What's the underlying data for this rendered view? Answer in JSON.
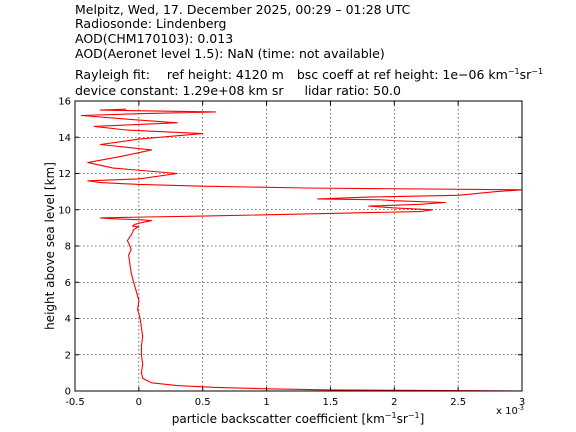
{
  "header": {
    "line1": "Melpitz, Wed, 17. December 2025, 00:29 – 01:28 UTC",
    "line2": "Radiosonde: Lindenberg",
    "line3": "AOD(CHM170103): 0.013",
    "line4": "AOD(Aeronet level 1.5): NaN   (time: not available)",
    "rayleigh_label": "Rayleigh fit:",
    "ref_height": "ref height: 4120 m",
    "bsc_prefix": "bsc coeff at ref height: 1e−06 km",
    "bsc_sup1": "−1",
    "bsc_mid": "sr",
    "bsc_sup2": "−1",
    "device_constant": "device constant: 1.29e+08 km sr",
    "lidar_ratio": "lidar ratio: 50.0"
  },
  "chart_data": {
    "type": "line",
    "xlabel_main": "particle backscatter coefficient [km",
    "xlabel_sup1": "−1",
    "xlabel_mid": "sr",
    "xlabel_sup2": "−1",
    "xlabel_end": "]",
    "ylabel": "height above sea level [km]",
    "x_multiplier_label": "x 10",
    "x_multiplier_exp": "-3",
    "xlim": [
      -0.5,
      3
    ],
    "ylim": [
      0,
      16
    ],
    "xticks": [
      "-0.5",
      "0",
      "0.5",
      "1",
      "1.5",
      "2",
      "2.5",
      "3"
    ],
    "yticks": [
      "0",
      "2",
      "4",
      "6",
      "8",
      "10",
      "12",
      "14",
      "16"
    ],
    "grid": true,
    "series_color": "#ff0000",
    "series": [
      {
        "x": [
          3.0,
          1.5,
          1.0,
          0.6,
          0.3,
          0.1,
          0.03,
          0.02,
          0.03,
          0.02,
          0.02,
          0.03,
          0.02,
          0.01,
          -0.01,
          0.0,
          -0.02,
          -0.04,
          -0.06,
          -0.07,
          -0.08,
          -0.06,
          -0.07,
          -0.09,
          -0.06,
          -0.04,
          -0.02,
          0.0,
          -0.05,
          -0.03,
          0.03,
          0.1,
          0.0,
          -0.2,
          -0.3,
          0.05,
          0.5,
          1.5,
          2.2,
          2.3,
          2.0,
          1.8,
          2.2,
          2.4,
          2.0,
          1.9,
          1.4,
          1.8,
          2.5,
          2.8,
          3.0,
          1.3,
          0.5,
          0.0,
          -0.3,
          -0.4,
          0.0,
          0.3,
          -0.2,
          -0.4,
          -0.1,
          0.1,
          -0.3,
          0.0,
          0.5,
          -0.1,
          -0.35,
          0.3,
          -0.1,
          -0.45,
          0.0,
          0.6,
          -0.3,
          -0.1
        ],
        "y": [
          0.0,
          0.06,
          0.12,
          0.2,
          0.3,
          0.45,
          0.7,
          1.0,
          1.5,
          2.0,
          2.5,
          3.0,
          3.5,
          4.0,
          4.5,
          5.0,
          5.5,
          6.0,
          6.5,
          7.0,
          7.5,
          7.8,
          8.0,
          8.3,
          8.6,
          8.9,
          9.0,
          9.05,
          9.1,
          9.2,
          9.3,
          9.4,
          9.45,
          9.5,
          9.55,
          9.6,
          9.65,
          9.8,
          9.9,
          10.0,
          10.1,
          10.2,
          10.3,
          10.4,
          10.5,
          10.55,
          10.6,
          10.7,
          10.8,
          11.0,
          11.1,
          11.2,
          11.3,
          11.4,
          11.5,
          11.6,
          11.7,
          12.0,
          12.3,
          12.6,
          13.0,
          13.3,
          13.6,
          13.9,
          14.2,
          14.4,
          14.6,
          14.8,
          15.0,
          15.2,
          15.3,
          15.4,
          15.5,
          15.55
        ]
      }
    ]
  }
}
